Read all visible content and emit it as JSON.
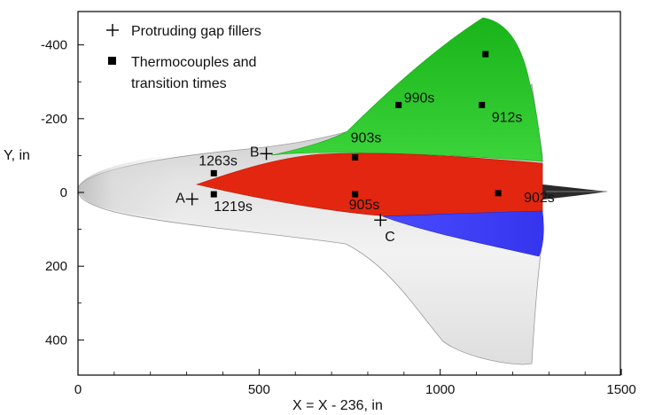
{
  "chart_data": {
    "type": "scatter",
    "xlabel": "X = X - 236, in",
    "ylabel": "Y, in",
    "xlim": [
      0,
      1500
    ],
    "ylim": [
      -490,
      520
    ],
    "y_inverted": true,
    "x_ticks": [
      0,
      500,
      1000,
      1500
    ],
    "y_ticks": [
      -400,
      -200,
      0,
      200,
      400
    ],
    "grid": false,
    "legend_position": "top-left",
    "legend": [
      {
        "marker": "cross",
        "label": "Protruding gap fillers"
      },
      {
        "marker": "square",
        "label": "Thermocouples and transition times"
      }
    ],
    "region_colors": {
      "body": "#dcdcdc",
      "red": "#e2260f",
      "green": "#2ed12e",
      "blue": "#3f3fff"
    },
    "gap_fillers": [
      {
        "label": "A",
        "x": 315,
        "y": 18
      },
      {
        "label": "B",
        "x": 520,
        "y": -105
      },
      {
        "label": "C",
        "x": 835,
        "y": 75
      }
    ],
    "thermocouples": [
      {
        "x": 375,
        "y": -52,
        "time": "1263s"
      },
      {
        "x": 375,
        "y": 5,
        "time": "1219s"
      },
      {
        "x": 765,
        "y": -95,
        "time": "903s"
      },
      {
        "x": 765,
        "y": 5,
        "time": "905s"
      },
      {
        "x": 885,
        "y": -237,
        "time": "990s"
      },
      {
        "x": 1115,
        "y": -237,
        "time": "912s"
      },
      {
        "x": 1125,
        "y": -375,
        "time": ""
      },
      {
        "x": 1160,
        "y": 2,
        "time": "902s"
      }
    ]
  }
}
